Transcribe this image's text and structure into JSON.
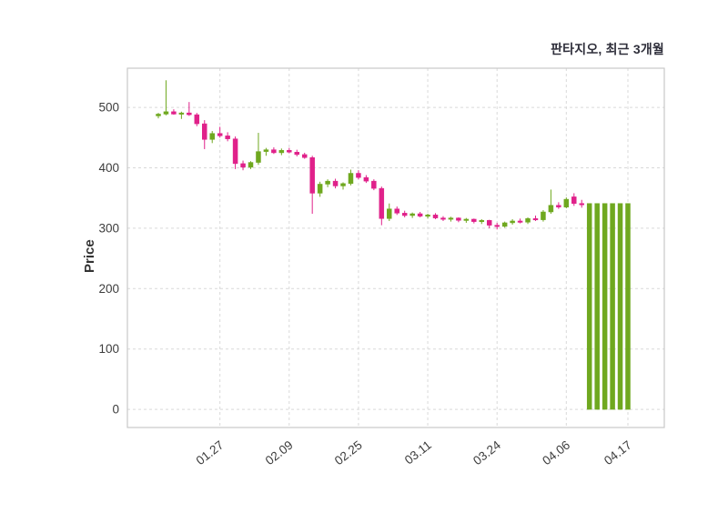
{
  "title": "판타지오, 최근 3개월",
  "ylabel": "Price",
  "colors": {
    "up": "#6fa81f",
    "down": "#e0218a",
    "grid": "#d9d9d9",
    "frame": "#c9c9c9",
    "tick_text": "#3d3d3d",
    "title_text": "#2e2e3a",
    "background": "#ffffff"
  },
  "chart_data": {
    "type": "candlestick",
    "title": "판타지오, 최근 3개월",
    "ylabel": "Price",
    "x_unit": "trading-day index",
    "ylim": [
      -30,
      565
    ],
    "grid": "dashed",
    "y_ticks": [
      0,
      100,
      200,
      300,
      400,
      500
    ],
    "x_ticks": [
      {
        "index": 8,
        "label": "01.27"
      },
      {
        "index": 17,
        "label": "02.09"
      },
      {
        "index": 26,
        "label": "02.25"
      },
      {
        "index": 35,
        "label": "03.11"
      },
      {
        "index": 44,
        "label": "03.24"
      },
      {
        "index": 53,
        "label": "04.06"
      },
      {
        "index": 61,
        "label": "04.17"
      }
    ],
    "ohlc_format": [
      "open",
      "high",
      "low",
      "close"
    ],
    "candles": [
      [
        486,
        491,
        482,
        489
      ],
      [
        489,
        545,
        487,
        493
      ],
      [
        493,
        497,
        488,
        489
      ],
      [
        489,
        493,
        481,
        491
      ],
      [
        491,
        509,
        486,
        488
      ],
      [
        488,
        491,
        469,
        473
      ],
      [
        473,
        479,
        431,
        447
      ],
      [
        447,
        461,
        441,
        457
      ],
      [
        457,
        468,
        450,
        453
      ],
      [
        453,
        459,
        444,
        448
      ],
      [
        448,
        452,
        398,
        407
      ],
      [
        407,
        412,
        396,
        401
      ],
      [
        401,
        411,
        398,
        409
      ],
      [
        409,
        458,
        405,
        427
      ],
      [
        427,
        433,
        420,
        430
      ],
      [
        430,
        434,
        423,
        425
      ],
      [
        425,
        432,
        421,
        429
      ],
      [
        429,
        433,
        424,
        426
      ],
      [
        426,
        430,
        419,
        422
      ],
      [
        422,
        425,
        415,
        417
      ],
      [
        417,
        420,
        324,
        358
      ],
      [
        358,
        377,
        352,
        373
      ],
      [
        373,
        381,
        368,
        378
      ],
      [
        378,
        382,
        366,
        370
      ],
      [
        370,
        376,
        364,
        374
      ],
      [
        374,
        397,
        371,
        391
      ],
      [
        391,
        396,
        381,
        384
      ],
      [
        384,
        388,
        375,
        378
      ],
      [
        378,
        381,
        363,
        366
      ],
      [
        366,
        369,
        305,
        316
      ],
      [
        316,
        341,
        312,
        332
      ],
      [
        332,
        336,
        322,
        325
      ],
      [
        325,
        329,
        318,
        321
      ],
      [
        321,
        326,
        317,
        324
      ],
      [
        324,
        327,
        318,
        320
      ],
      [
        320,
        324,
        316,
        322
      ],
      [
        322,
        325,
        315,
        317
      ],
      [
        317,
        320,
        312,
        315
      ],
      [
        315,
        319,
        311,
        317
      ],
      [
        317,
        318,
        310,
        313
      ],
      [
        313,
        317,
        309,
        315
      ],
      [
        315,
        316,
        308,
        311
      ],
      [
        311,
        315,
        307,
        313
      ],
      [
        313,
        314,
        300,
        305
      ],
      [
        305,
        309,
        298,
        303
      ],
      [
        303,
        311,
        301,
        309
      ],
      [
        309,
        315,
        306,
        312
      ],
      [
        312,
        316,
        308,
        310
      ],
      [
        310,
        318,
        307,
        316
      ],
      [
        316,
        321,
        312,
        314
      ],
      [
        314,
        330,
        311,
        327
      ],
      [
        327,
        364,
        324,
        338
      ],
      [
        338,
        343,
        332,
        335
      ],
      [
        335,
        351,
        333,
        348
      ],
      [
        352,
        358,
        337,
        341
      ],
      [
        341,
        347,
        334,
        339
      ],
      [
        0,
        341,
        0,
        341
      ],
      [
        0,
        341,
        0,
        341
      ],
      [
        0,
        341,
        0,
        341
      ],
      [
        0,
        341,
        0,
        341
      ],
      [
        0,
        341,
        0,
        341
      ],
      [
        0,
        341,
        0,
        341
      ]
    ]
  }
}
